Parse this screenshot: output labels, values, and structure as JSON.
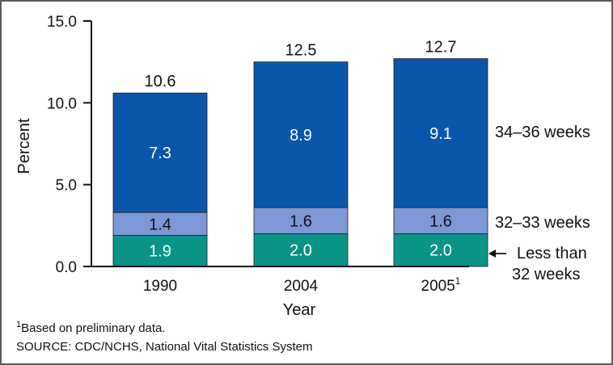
{
  "chart_data": {
    "type": "bar",
    "stacked": true,
    "categories": [
      "1990",
      "2004",
      "2005"
    ],
    "category_superscripts": [
      "",
      "",
      "1"
    ],
    "series": [
      {
        "name": "Less than 32 weeks",
        "values": [
          1.9,
          2.0,
          2.0
        ],
        "color": "#0a9486"
      },
      {
        "name": "32–33 weeks",
        "values": [
          1.4,
          1.6,
          1.6
        ],
        "color": "#7d97d7"
      },
      {
        "name": "34–36 weeks",
        "values": [
          7.3,
          8.9,
          9.1
        ],
        "color": "#0a56ad"
      }
    ],
    "totals": [
      10.6,
      12.5,
      12.7
    ],
    "xlabel": "Year",
    "ylabel": "Percent",
    "ylim": [
      0,
      15
    ],
    "yticks": [
      "0.0",
      "5.0",
      "10.0",
      "15.0"
    ],
    "legend_placement": "right",
    "legend_arrow_series": "Less than 32 weeks"
  },
  "footnote": {
    "marker": "1",
    "text": "Based on preliminary data."
  },
  "source": "SOURCE: CDC/NCHS, National Vital Statistics System"
}
